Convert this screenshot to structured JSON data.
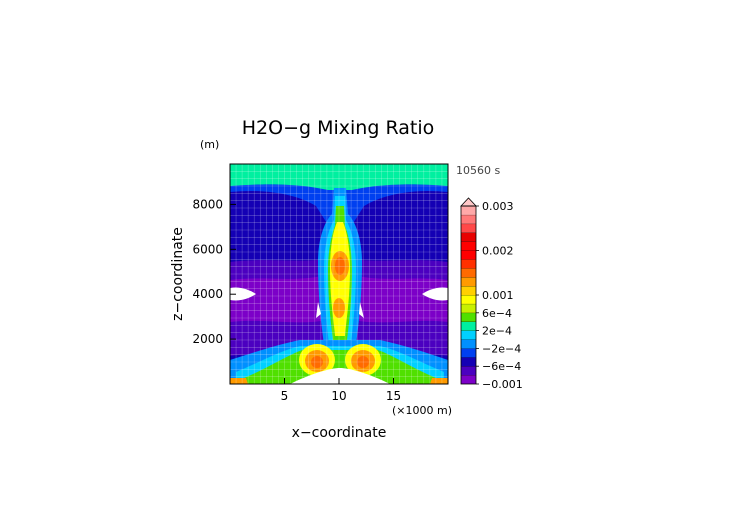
{
  "chart_data": {
    "type": "heatmap",
    "title": "H2O−g Mixing Ratio",
    "time_label": "10560 s",
    "xlabel": "x−coordinate",
    "ylabel": "z−coordinate",
    "x_unit_label": "(×1000 m)",
    "y_unit_label": "(m)",
    "xlim": [
      0,
      20
    ],
    "ylim": [
      0,
      9800
    ],
    "xticks": [
      5,
      10,
      15
    ],
    "xtick_labels": [
      "5",
      "10",
      "15"
    ],
    "yticks": [
      2000,
      4000,
      6000,
      8000
    ],
    "ytick_labels": [
      "2000",
      "4000",
      "6000",
      "8000"
    ],
    "grid": true,
    "colorbar": {
      "levels": [
        -0.001,
        -0.0008,
        -0.0006,
        -0.0004,
        -0.0002,
        0,
        0.0002,
        0.0004,
        0.0006,
        0.0008,
        0.001,
        0.0012,
        0.0014,
        0.0016,
        0.0018,
        0.002,
        0.0022,
        0.0024,
        0.0026,
        0.0028,
        0.003
      ],
      "colors": [
        "#7c00c8",
        "#4b00c0",
        "#1400b4",
        "#0040f0",
        "#0090ff",
        "#00d0ff",
        "#00f0a0",
        "#50e000",
        "#c8f000",
        "#ffff00",
        "#ffd000",
        "#ff9a00",
        "#ff6a00",
        "#ff3000",
        "#ff0000",
        "#ff0000",
        "#e80000",
        "#ff4848",
        "#ff7878",
        "#ffa8a8"
      ],
      "tick_labels": [
        {
          "value": -0.001,
          "label": "−0.001"
        },
        {
          "value": -0.0006,
          "label": "−6e−4"
        },
        {
          "value": -0.0002,
          "label": "−2e−4"
        },
        {
          "value": 0.0002,
          "label": "2e−4"
        },
        {
          "value": 0.0006,
          "label": "6e−4"
        },
        {
          "value": 0.001,
          "label": "0.001"
        },
        {
          "value": 0.002,
          "label": "0.002"
        },
        {
          "value": 0.003,
          "label": "0.003"
        }
      ]
    },
    "fields": [
      {
        "name": "background",
        "value": -0.0009
      },
      {
        "name": "purple band",
        "value": -0.0011,
        "z_range": [
          2000,
          6000
        ]
      },
      {
        "name": "top layer",
        "value": 0.0002,
        "z_range": [
          8800,
          9800
        ]
      },
      {
        "name": "central column",
        "value": 0.0006,
        "x_center": 10,
        "z_range": [
          400,
          8800
        ]
      },
      {
        "name": "column max (upper)",
        "value": 0.0012,
        "x": 10,
        "z": 5200
      },
      {
        "name": "column max (lower)",
        "value": 0.0012,
        "x": 10,
        "z": 3500
      },
      {
        "name": "near-surface max left",
        "value": 0.0013,
        "x": 7.8,
        "z": 1000
      },
      {
        "name": "near-surface max right",
        "value": 0.0013,
        "x": 12.2,
        "z": 1000
      },
      {
        "name": "surface layer",
        "value": 0.0004,
        "z_range": [
          0,
          400
        ]
      }
    ]
  }
}
